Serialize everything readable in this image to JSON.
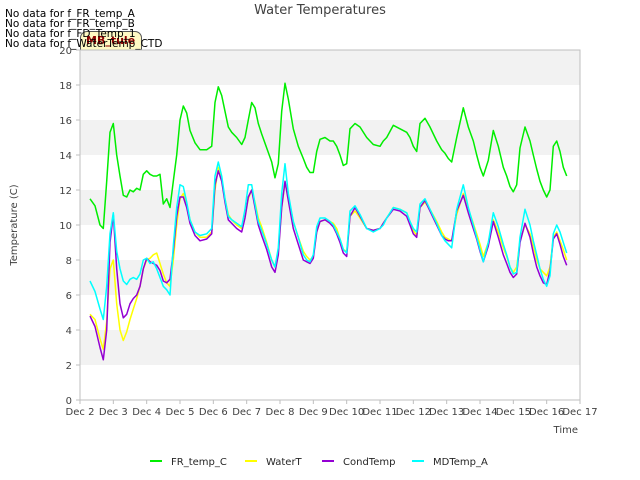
{
  "no_data_messages": [
    "No data for f_FR_temp_A",
    "No data for f_FR_temp_B",
    "No data for f_FD_Temp_1",
    "No data for f_WaterTemp_CTD"
  ],
  "badge_label": "MB_tule",
  "colors": {
    "FR_temp_C": "#00ee00",
    "WaterT": "#ffff00",
    "CondTemp": "#9400d3",
    "MDTemp_A": "#00ffff",
    "band": "#f2f2f2",
    "axis": "#bfbfbf"
  },
  "chart_data": {
    "type": "line",
    "title": "Water Temperatures",
    "xlabel": "Time",
    "ylabel": "Temperature (C)",
    "xlim": [
      2,
      17
    ],
    "ylim": [
      0,
      20
    ],
    "x_ticks": [
      2,
      3,
      4,
      5,
      6,
      7,
      8,
      9,
      10,
      11,
      12,
      13,
      14,
      15,
      16,
      17
    ],
    "x_tick_labels": [
      "Dec 2",
      "Dec 3",
      "Dec 4",
      "Dec 5",
      "Dec 6",
      "Dec 7",
      "Dec 8",
      "Dec 9",
      "Dec 10",
      "Dec 11",
      "Dec 12",
      "Dec 13",
      "Dec 14",
      "Dec 15",
      "Dec 16",
      "Dec 17"
    ],
    "y_ticks": [
      0,
      2,
      4,
      6,
      8,
      10,
      12,
      14,
      16,
      18,
      20
    ],
    "grid": "alternating horizontal bands",
    "legend_placement": "bottom",
    "series": [
      {
        "name": "FR_temp_C",
        "x": [
          2.3,
          2.45,
          2.6,
          2.7,
          2.8,
          2.9,
          3.0,
          3.1,
          3.2,
          3.3,
          3.4,
          3.5,
          3.6,
          3.7,
          3.8,
          3.9,
          4.0,
          4.1,
          4.2,
          4.3,
          4.4,
          4.5,
          4.6,
          4.7,
          4.8,
          4.9,
          5.0,
          5.1,
          5.2,
          5.3,
          5.45,
          5.6,
          5.8,
          5.95,
          6.05,
          6.15,
          6.25,
          6.35,
          6.45,
          6.55,
          6.7,
          6.85,
          6.95,
          7.05,
          7.15,
          7.25,
          7.35,
          7.45,
          7.6,
          7.75,
          7.85,
          7.95,
          8.05,
          8.15,
          8.25,
          8.4,
          8.55,
          8.7,
          8.8,
          8.9,
          9.0,
          9.1,
          9.2,
          9.35,
          9.5,
          9.6,
          9.7,
          9.8,
          9.9,
          10.0,
          10.1,
          10.25,
          10.4,
          10.6,
          10.8,
          11.0,
          11.1,
          11.2,
          11.4,
          11.6,
          11.8,
          11.9,
          12.0,
          12.1,
          12.2,
          12.35,
          12.5,
          12.7,
          12.85,
          12.95,
          13.05,
          13.15,
          13.3,
          13.5,
          13.65,
          13.8,
          13.9,
          14.0,
          14.1,
          14.25,
          14.4,
          14.55,
          14.7,
          14.8,
          14.9,
          15.0,
          15.1,
          15.2,
          15.35,
          15.5,
          15.6,
          15.7,
          15.8,
          15.9,
          16.0,
          16.1,
          16.2,
          16.3
        ],
        "values": [
          11.5,
          11.1,
          10.0,
          9.8,
          12.5,
          15.3,
          15.8,
          14.0,
          12.8,
          11.7,
          11.6,
          12.0,
          11.9,
          12.1,
          12.0,
          12.9,
          13.1,
          12.9,
          12.8,
          12.8,
          12.9,
          11.2,
          11.5,
          11.0,
          12.5,
          14.0,
          16.0,
          16.8,
          16.4,
          15.4,
          14.7,
          14.3,
          14.3,
          14.5,
          17.0,
          17.9,
          17.4,
          16.5,
          15.6,
          15.3,
          15.0,
          14.6,
          15.0,
          16.0,
          17.0,
          16.7,
          15.8,
          15.2,
          14.4,
          13.6,
          12.7,
          13.5,
          16.5,
          18.1,
          17.2,
          15.5,
          14.5,
          13.8,
          13.3,
          13.0,
          13.0,
          14.2,
          14.9,
          15.0,
          14.8,
          14.8,
          14.5,
          14.0,
          13.4,
          13.5,
          15.5,
          15.8,
          15.6,
          15.0,
          14.6,
          14.5,
          14.8,
          15.0,
          15.7,
          15.5,
          15.3,
          15.0,
          14.5,
          14.2,
          15.8,
          16.1,
          15.6,
          14.8,
          14.3,
          14.1,
          13.8,
          13.6,
          15.0,
          16.7,
          15.6,
          14.8,
          14.0,
          13.3,
          12.8,
          13.7,
          15.4,
          14.5,
          13.3,
          12.8,
          12.2,
          11.9,
          12.3,
          14.4,
          15.6,
          14.8,
          14.0,
          13.2,
          12.5,
          12.0,
          11.6,
          12.0,
          14.5,
          14.8
        ],
        "values_tail": {
          "x": [
            16.4,
            16.5,
            16.6
          ],
          "values": [
            14.2,
            13.3,
            12.8
          ]
        }
      },
      {
        "name": "WaterT",
        "x": [
          2.3,
          2.45,
          2.6,
          2.7,
          2.8,
          2.9,
          3.0,
          3.1,
          3.2,
          3.3,
          3.4,
          3.5,
          3.6,
          3.7,
          3.8,
          3.9,
          4.0,
          4.1,
          4.2,
          4.3,
          4.4,
          4.5,
          4.6,
          4.7,
          4.8,
          4.9,
          5.0,
          5.1,
          5.2,
          5.3,
          5.45,
          5.6,
          5.8,
          5.95,
          6.05,
          6.15,
          6.25,
          6.35,
          6.45,
          6.55,
          6.7,
          6.85,
          6.95,
          7.05,
          7.15,
          7.25,
          7.35,
          7.45,
          7.6,
          7.75,
          7.85,
          7.95,
          8.05,
          8.15,
          8.25,
          8.4,
          8.55,
          8.7,
          8.8,
          8.9,
          9.0,
          9.1,
          9.2,
          9.35,
          9.5,
          9.6,
          9.7,
          9.8,
          9.9,
          10.0,
          10.1,
          10.25,
          10.4,
          10.6,
          10.8,
          11.0,
          11.1,
          11.2,
          11.4,
          11.6,
          11.8,
          11.9,
          12.0,
          12.1,
          12.2,
          12.35,
          12.5,
          12.7,
          12.85,
          12.95,
          13.05,
          13.15,
          13.3,
          13.5,
          13.65,
          13.8,
          13.9,
          14.0,
          14.1,
          14.25,
          14.4,
          14.55,
          14.7,
          14.8,
          14.9,
          15.0,
          15.1,
          15.2,
          15.35,
          15.5,
          15.6,
          15.7,
          15.8,
          15.9,
          16.0,
          16.1,
          16.2,
          16.3,
          16.4,
          16.5,
          16.6
        ],
        "values": [
          4.9,
          4.6,
          3.5,
          2.9,
          4.5,
          7.5,
          8.0,
          5.5,
          4.0,
          3.4,
          3.9,
          4.6,
          5.2,
          5.8,
          6.5,
          7.5,
          8.0,
          8.1,
          8.3,
          8.4,
          7.8,
          7.2,
          6.7,
          6.5,
          8.0,
          10.0,
          11.5,
          11.8,
          11.2,
          10.3,
          9.6,
          9.3,
          9.3,
          9.6,
          12.0,
          13.3,
          12.6,
          11.5,
          10.6,
          10.3,
          10.0,
          9.8,
          10.5,
          11.5,
          12.0,
          11.3,
          10.4,
          9.9,
          9.0,
          8.0,
          7.6,
          8.5,
          11.0,
          12.4,
          11.6,
          10.2,
          9.3,
          8.5,
          8.2,
          8.0,
          8.2,
          9.6,
          10.2,
          10.3,
          10.2,
          10.1,
          9.8,
          9.2,
          8.6,
          8.5,
          10.5,
          10.8,
          10.4,
          9.8,
          9.7,
          9.8,
          10.1,
          10.4,
          11.0,
          10.9,
          10.7,
          10.2,
          9.7,
          9.4,
          11.0,
          11.3,
          10.9,
          10.2,
          9.6,
          9.3,
          9.2,
          9.1,
          10.6,
          11.8,
          10.9,
          10.1,
          9.5,
          8.9,
          8.2,
          9.0,
          10.3,
          9.6,
          8.7,
          8.2,
          7.6,
          7.3,
          7.6,
          9.1,
          10.0,
          9.5,
          8.8,
          8.0,
          7.5,
          7.3,
          7.1,
          7.6,
          9.3,
          9.6,
          9.1,
          8.6,
          8.0
        ]
      },
      {
        "name": "CondTemp",
        "x": [
          2.3,
          2.45,
          2.6,
          2.7,
          2.8,
          2.9,
          3.0,
          3.1,
          3.2,
          3.3,
          3.4,
          3.5,
          3.6,
          3.7,
          3.8,
          3.9,
          4.0,
          4.1,
          4.2,
          4.3,
          4.4,
          4.5,
          4.6,
          4.7,
          4.8,
          4.9,
          5.0,
          5.1,
          5.2,
          5.3,
          5.45,
          5.6,
          5.8,
          5.95,
          6.05,
          6.15,
          6.25,
          6.35,
          6.45,
          6.55,
          6.7,
          6.85,
          6.95,
          7.05,
          7.15,
          7.25,
          7.35,
          7.45,
          7.6,
          7.75,
          7.85,
          7.95,
          8.05,
          8.15,
          8.25,
          8.4,
          8.55,
          8.7,
          8.8,
          8.9,
          9.0,
          9.1,
          9.2,
          9.35,
          9.5,
          9.6,
          9.7,
          9.8,
          9.9,
          10.0,
          10.1,
          10.25,
          10.4,
          10.6,
          10.8,
          11.0,
          11.1,
          11.2,
          11.4,
          11.6,
          11.8,
          11.9,
          12.0,
          12.1,
          12.2,
          12.35,
          12.5,
          12.7,
          12.85,
          12.95,
          13.05,
          13.15,
          13.3,
          13.5,
          13.65,
          13.8,
          13.9,
          14.0,
          14.1,
          14.25,
          14.4,
          14.55,
          14.7,
          14.8,
          14.9,
          15.0,
          15.1,
          15.2,
          15.35,
          15.5,
          15.6,
          15.7,
          15.8,
          15.9,
          16.0,
          16.1,
          16.2,
          16.3,
          16.4,
          16.5,
          16.6
        ],
        "values": [
          4.8,
          4.2,
          3.0,
          2.3,
          4.0,
          9.0,
          10.6,
          7.5,
          5.5,
          4.7,
          4.9,
          5.5,
          5.8,
          6.0,
          6.5,
          7.5,
          8.1,
          7.9,
          7.8,
          7.7,
          7.4,
          6.8,
          6.7,
          6.9,
          8.5,
          10.5,
          11.6,
          11.6,
          11.0,
          10.1,
          9.4,
          9.1,
          9.2,
          9.5,
          12.3,
          13.1,
          12.5,
          11.3,
          10.3,
          10.1,
          9.8,
          9.6,
          10.4,
          11.6,
          12.0,
          11.0,
          10.0,
          9.4,
          8.6,
          7.6,
          7.3,
          8.3,
          11.0,
          12.5,
          11.4,
          9.8,
          8.9,
          8.0,
          7.9,
          7.8,
          8.1,
          9.6,
          10.2,
          10.3,
          10.1,
          9.9,
          9.5,
          9.0,
          8.4,
          8.2,
          10.5,
          11.0,
          10.5,
          9.8,
          9.7,
          9.8,
          10.1,
          10.4,
          10.9,
          10.8,
          10.5,
          10.0,
          9.5,
          9.3,
          11.0,
          11.4,
          10.8,
          10.0,
          9.4,
          9.2,
          9.1,
          9.1,
          10.8,
          11.7,
          10.7,
          9.8,
          9.2,
          8.5,
          7.9,
          8.8,
          10.2,
          9.3,
          8.3,
          7.8,
          7.3,
          7.0,
          7.2,
          9.0,
          10.1,
          9.3,
          8.4,
          7.6,
          7.1,
          6.7,
          6.6,
          7.4,
          9.2,
          9.5,
          8.9,
          8.2,
          7.7
        ]
      },
      {
        "name": "MDTemp_A",
        "x": [
          2.3,
          2.45,
          2.6,
          2.7,
          2.8,
          2.9,
          3.0,
          3.1,
          3.2,
          3.3,
          3.4,
          3.5,
          3.6,
          3.7,
          3.8,
          3.9,
          4.0,
          4.1,
          4.2,
          4.3,
          4.4,
          4.5,
          4.6,
          4.7,
          4.8,
          4.9,
          5.0,
          5.1,
          5.2,
          5.3,
          5.45,
          5.6,
          5.8,
          5.95,
          6.05,
          6.15,
          6.25,
          6.35,
          6.45,
          6.55,
          6.7,
          6.85,
          6.95,
          7.05,
          7.15,
          7.25,
          7.35,
          7.45,
          7.6,
          7.75,
          7.85,
          7.95,
          8.05,
          8.15,
          8.25,
          8.4,
          8.55,
          8.7,
          8.8,
          8.9,
          9.0,
          9.1,
          9.2,
          9.35,
          9.5,
          9.6,
          9.7,
          9.8,
          9.9,
          10.0,
          10.1,
          10.25,
          10.4,
          10.6,
          10.8,
          11.0,
          11.1,
          11.2,
          11.4,
          11.6,
          11.8,
          11.9,
          12.0,
          12.1,
          12.2,
          12.35,
          12.5,
          12.7,
          12.85,
          12.95,
          13.05,
          13.15,
          13.3,
          13.5,
          13.65,
          13.8,
          13.9,
          14.0,
          14.1,
          14.25,
          14.4,
          14.55,
          14.7,
          14.8,
          14.9,
          15.0,
          15.1,
          15.2,
          15.35,
          15.5,
          15.6,
          15.7,
          15.8,
          15.9,
          16.0,
          16.1,
          16.2,
          16.3,
          16.4,
          16.5,
          16.6
        ],
        "values": [
          6.8,
          6.2,
          5.2,
          4.6,
          6.5,
          9.5,
          10.7,
          8.5,
          7.5,
          6.8,
          6.6,
          6.9,
          7.0,
          6.9,
          7.2,
          8.0,
          8.1,
          7.8,
          7.9,
          7.5,
          7.0,
          6.5,
          6.3,
          6.0,
          8.8,
          11.0,
          12.3,
          12.2,
          11.3,
          10.3,
          9.6,
          9.4,
          9.5,
          9.8,
          12.8,
          13.6,
          12.8,
          11.5,
          10.5,
          10.3,
          10.1,
          9.9,
          10.9,
          12.3,
          12.3,
          11.2,
          10.2,
          9.7,
          8.9,
          8.0,
          7.6,
          8.7,
          11.8,
          13.5,
          11.8,
          10.2,
          9.3,
          8.3,
          8.0,
          7.9,
          8.3,
          9.9,
          10.4,
          10.4,
          10.2,
          10.0,
          9.6,
          9.2,
          8.6,
          8.4,
          10.8,
          11.1,
          10.6,
          9.8,
          9.6,
          9.8,
          10.0,
          10.4,
          11.0,
          10.9,
          10.7,
          10.2,
          9.8,
          9.6,
          11.2,
          11.5,
          10.9,
          10.1,
          9.4,
          9.1,
          8.9,
          8.7,
          10.9,
          12.3,
          11.0,
          10.0,
          9.3,
          8.6,
          7.9,
          9.0,
          10.7,
          9.9,
          8.9,
          8.3,
          7.6,
          7.2,
          7.3,
          9.3,
          10.9,
          10.0,
          9.1,
          8.3,
          7.5,
          6.9,
          6.5,
          7.1,
          9.5,
          10.0,
          9.6,
          9.0,
          8.4
        ]
      }
    ]
  }
}
